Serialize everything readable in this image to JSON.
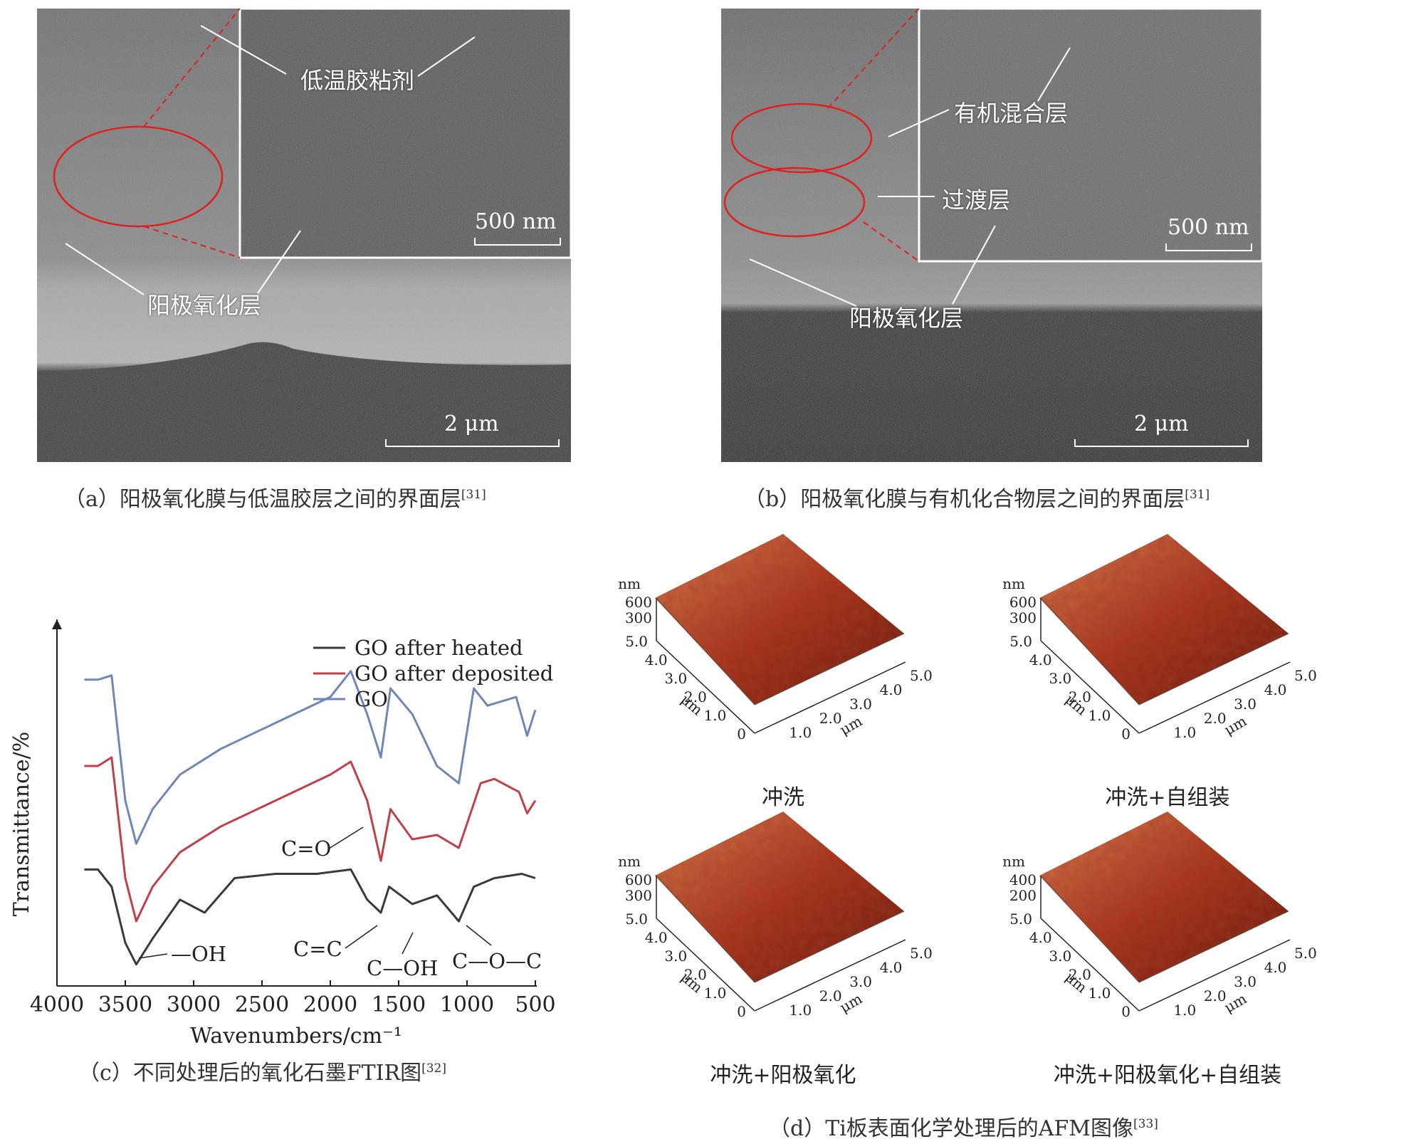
{
  "panel_a": {
    "label_adhesive": "低温胶粘剂",
    "label_anodic": "阳极氧化层",
    "scale_inset": "500 nm",
    "scale_main": "2 μm",
    "caption": "（a）阳极氧化膜与低温胶层之间的界面层",
    "ref": "[31]"
  },
  "panel_b": {
    "label_organic": "有机混合层",
    "label_transition": "过渡层",
    "label_anodic": "阳极氧化层",
    "scale_inset": "500 nm",
    "scale_main": "2 μm",
    "caption": "（b）阳极氧化膜与有机化合物层之间的界面层",
    "ref": "[31]"
  },
  "panel_c": {
    "caption": "（c）不同处理后的氧化石墨FTIR图",
    "ref": "[32]",
    "annotations": {
      "co": "C=O",
      "oh": "—OH",
      "cc": "C=C",
      "coh": "C—OH",
      "coc": "C—O—C"
    },
    "colors": {
      "heated": "#3a3a3a",
      "deposited": "#c0404a",
      "go": "#6f86b8"
    }
  },
  "panel_d": {
    "caption": "（d）Ti板表面化学处理后的AFM图像",
    "ref": "[33]",
    "unit_nm": "nm",
    "unit_um": "μm",
    "plots": [
      {
        "label": "冲洗",
        "z_ticks": [
          "600",
          "300"
        ]
      },
      {
        "label": "冲洗+自组装",
        "z_ticks": [
          "600",
          "300"
        ]
      },
      {
        "label": "冲洗+阳极氧化",
        "z_ticks": [
          "600",
          "300"
        ]
      },
      {
        "label": "冲洗+阳极氧化+自组装",
        "z_ticks": [
          "400",
          "200"
        ]
      }
    ],
    "xy_ticks": [
      "5.0",
      "4.0",
      "3.0",
      "2.0",
      "1.0",
      "0"
    ],
    "colors": {
      "dark": "#5a1208",
      "mid": "#a8321a",
      "light": "#e08a5a"
    }
  },
  "chart_data": {
    "type": "line",
    "xlabel": "Wavenumbers/cm⁻¹",
    "ylabel": "Transmittance/%",
    "xlim": [
      4000,
      500
    ],
    "x_ticks": [
      4000,
      3500,
      3000,
      2500,
      2000,
      1500,
      1000,
      500
    ],
    "legend_position": "top-right",
    "series": [
      {
        "name": "GO after heated",
        "x": [
          3800,
          3700,
          3600,
          3500,
          3420,
          3300,
          3100,
          2920,
          2700,
          2400,
          2100,
          1850,
          1730,
          1630,
          1570,
          1400,
          1220,
          1060,
          950,
          800,
          600,
          500
        ],
        "y": [
          62,
          62,
          58,
          45,
          40,
          46,
          55,
          52,
          60,
          61,
          61,
          62,
          55,
          52,
          58,
          54,
          56,
          50,
          58,
          60,
          61,
          60
        ]
      },
      {
        "name": "GO after deposited",
        "x": [
          3800,
          3700,
          3600,
          3500,
          3420,
          3300,
          3100,
          2800,
          2400,
          2000,
          1850,
          1730,
          1630,
          1560,
          1400,
          1220,
          1060,
          900,
          800,
          620,
          560,
          500
        ],
        "y": [
          86,
          86,
          88,
          60,
          50,
          58,
          66,
          72,
          78,
          84,
          87,
          78,
          64,
          76,
          69,
          70,
          67,
          82,
          83,
          80,
          75,
          78
        ]
      },
      {
        "name": "GO",
        "x": [
          3800,
          3700,
          3600,
          3500,
          3420,
          3300,
          3100,
          2800,
          2400,
          2000,
          1850,
          1730,
          1630,
          1560,
          1400,
          1220,
          1060,
          950,
          850,
          640,
          560,
          500
        ],
        "y": [
          106,
          106,
          107,
          78,
          68,
          76,
          84,
          90,
          96,
          102,
          108,
          98,
          88,
          104,
          98,
          86,
          82,
          104,
          100,
          102,
          93,
          99
        ]
      }
    ]
  }
}
